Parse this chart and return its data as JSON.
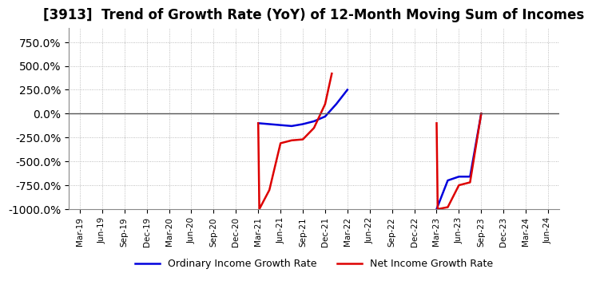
{
  "title": "[3913]  Trend of Growth Rate (YoY) of 12-Month Moving Sum of Incomes",
  "title_fontsize": 12,
  "ylim": [
    -1000,
    900
  ],
  "yticks": [
    -1000,
    -750,
    -500,
    -250,
    0,
    250,
    500,
    750
  ],
  "background_color": "#ffffff",
  "plot_bg_color": "#ffffff",
  "grid_color": "#aaaaaa",
  "zero_line_color": "#555555",
  "ordinary_color": "#0000dd",
  "net_color": "#dd0000",
  "ordinary_label": "Ordinary Income Growth Rate",
  "net_label": "Net Income Growth Rate",
  "x_labels": [
    "Mar-19",
    "Jun-19",
    "Sep-19",
    "Dec-19",
    "Mar-20",
    "Jun-20",
    "Sep-20",
    "Dec-20",
    "Mar-21",
    "Jun-21",
    "Sep-21",
    "Dec-21",
    "Mar-22",
    "Jun-22",
    "Sep-22",
    "Dec-22",
    "Mar-23",
    "Jun-23",
    "Sep-23",
    "Dec-23",
    "Mar-24",
    "Jun-24"
  ],
  "ordinary_x": [
    8.0,
    9.0,
    9.5,
    10.0,
    10.5,
    11.0,
    11.5,
    12.0
  ],
  "ordinary_y": [
    -100,
    -120,
    -130,
    -110,
    -80,
    -30,
    100,
    250
  ],
  "net_x": [
    8.0,
    8.05,
    8.5,
    9.0,
    9.5,
    10.0,
    10.5,
    11.0,
    11.3
  ],
  "net_y": [
    -100,
    -1000,
    -800,
    -310,
    -280,
    -270,
    -150,
    100,
    420
  ],
  "ordinary_x2": [
    16.0,
    16.5,
    17.0,
    17.5,
    18.0
  ],
  "ordinary_y2": [
    -1000,
    -700,
    -660,
    -660,
    0
  ],
  "net_x2": [
    16.0,
    16.05,
    16.5,
    17.0,
    17.5,
    18.0
  ],
  "net_y2": [
    -100,
    -1000,
    -980,
    -750,
    -720,
    0
  ]
}
